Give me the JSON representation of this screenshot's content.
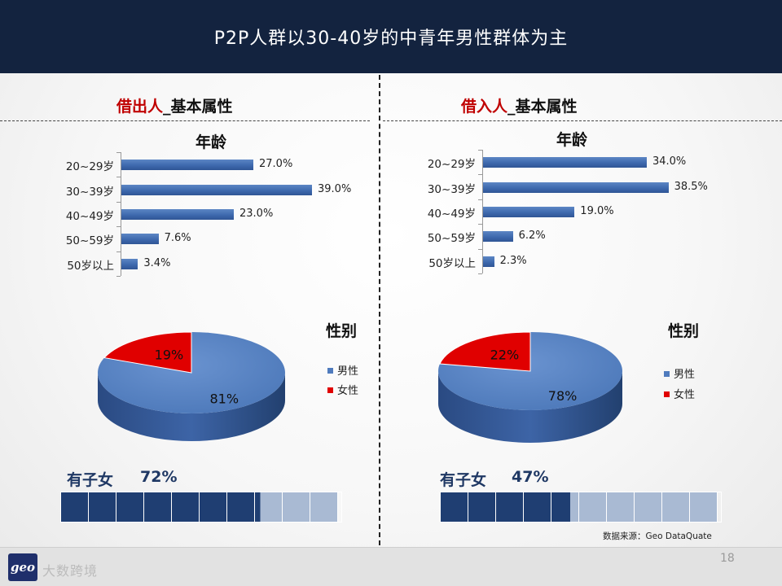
{
  "title": "P2P人群以30-40岁的中青年男性群体为主",
  "chart_data": [
    {
      "type": "bar",
      "panel": "left",
      "title": "年龄",
      "categories": [
        "20~29岁",
        "30~39岁",
        "40~49岁",
        "50~59岁",
        "50岁以上"
      ],
      "values": [
        27.0,
        39.0,
        23.0,
        7.6,
        3.4
      ],
      "value_labels": [
        "27.0%",
        "39.0%",
        "23.0%",
        "7.6%",
        "3.4%"
      ],
      "xlim": [
        0,
        45
      ]
    },
    {
      "type": "bar",
      "panel": "right",
      "title": "年龄",
      "categories": [
        "20~29岁",
        "30~39岁",
        "40~49岁",
        "50~59岁",
        "50岁以上"
      ],
      "values": [
        34.0,
        38.5,
        19.0,
        6.2,
        2.3
      ],
      "value_labels": [
        "34.0%",
        "38.5%",
        "19.0%",
        "6.2%",
        "2.3%"
      ],
      "xlim": [
        0,
        45
      ]
    },
    {
      "type": "pie",
      "panel": "left",
      "title": "性别",
      "categories": [
        "男性",
        "女性"
      ],
      "values": [
        81,
        19
      ],
      "value_labels": [
        "81%",
        "19%"
      ]
    },
    {
      "type": "pie",
      "panel": "right",
      "title": "性别",
      "categories": [
        "男性",
        "女性"
      ],
      "values": [
        78,
        22
      ],
      "value_labels": [
        "78%",
        "22%"
      ]
    }
  ],
  "panels": {
    "left": {
      "title_red": "借出人",
      "title_black": "_基本属性",
      "kids_label": "有子女",
      "kids_pct": "72%",
      "kids_value": 0.72
    },
    "right": {
      "title_red": "借入人",
      "title_black": "_基本属性",
      "kids_label": "有子女",
      "kids_pct": "47%",
      "kids_value": 0.47
    }
  },
  "colors": {
    "bar": "#4472c4",
    "male": "#4f7bbd",
    "female": "#e00000",
    "progress_fill": "#1f3e72",
    "progress_empty": "#a9bad3",
    "title_bg": "#13233f"
  },
  "source": "数据来源：Geo DataQuate",
  "page_number": "18",
  "logo": {
    "mark": "geo",
    "text": "大数跨境"
  }
}
